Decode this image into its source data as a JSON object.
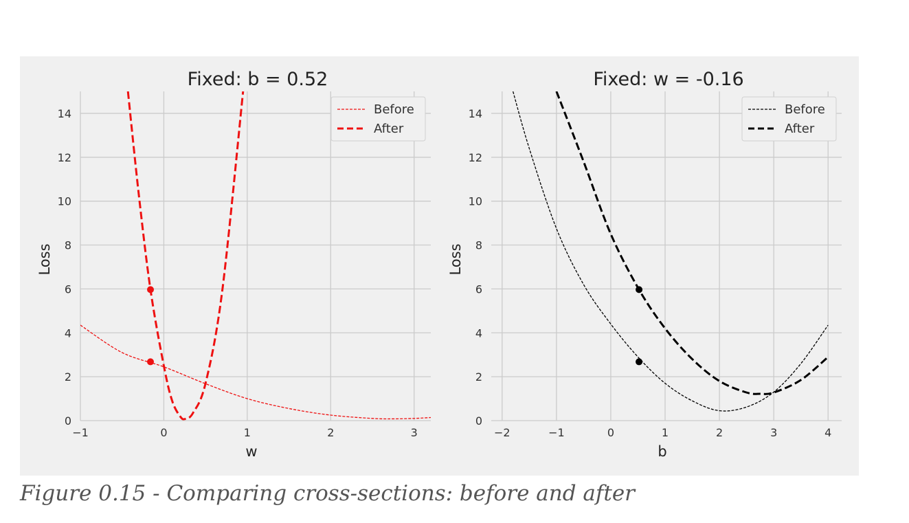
{
  "caption": "Figure 0.15 - Comparing cross-sections: before and after",
  "chart_data": [
    {
      "type": "line",
      "title": "Fixed: b = 0.52",
      "xlabel": "w",
      "ylabel": "Loss",
      "xlim": [
        -1,
        3.2
      ],
      "ylim": [
        0,
        15
      ],
      "xticks": [
        -1,
        0,
        1,
        2,
        3
      ],
      "yticks": [
        0,
        2,
        4,
        6,
        8,
        10,
        12,
        14
      ],
      "grid": true,
      "legend": "top-right",
      "color": "#ee1111",
      "series": [
        {
          "name": "Before",
          "style": "thin-dashed",
          "x": [
            -1,
            -0.5,
            0,
            0.5,
            1,
            1.5,
            2,
            2.5,
            2.75,
            3,
            3.2
          ],
          "y": [
            4.35,
            3.1,
            2.45,
            1.68,
            1.0,
            0.55,
            0.25,
            0.1,
            0.08,
            0.1,
            0.14
          ]
        },
        {
          "name": "After",
          "style": "thick-dashed",
          "x": [
            -0.43,
            -0.3,
            -0.16,
            0,
            0.1,
            0.2,
            0.26,
            0.35,
            0.5,
            0.7,
            0.95
          ],
          "y": [
            15,
            10.3,
            5.97,
            2.5,
            0.9,
            0.17,
            0.08,
            0.35,
            1.7,
            5.9,
            15
          ]
        }
      ],
      "points": [
        {
          "x": -0.16,
          "y": 5.97
        },
        {
          "x": -0.16,
          "y": 2.68
        }
      ]
    },
    {
      "type": "line",
      "title": "Fixed: w = -0.16",
      "xlabel": "b",
      "ylabel": "Loss",
      "xlim": [
        -2.2,
        4.25
      ],
      "ylim": [
        0,
        15
      ],
      "xticks": [
        -2,
        -1,
        0,
        1,
        2,
        3,
        4
      ],
      "yticks": [
        0,
        2,
        4,
        6,
        8,
        10,
        12,
        14
      ],
      "grid": true,
      "legend": "top-right",
      "color": "#000000",
      "series": [
        {
          "name": "Before",
          "style": "thin-dashed",
          "x": [
            -1.8,
            -1.5,
            -1,
            -0.5,
            0,
            0.5,
            1,
            1.5,
            2,
            2.5,
            3,
            3.5,
            4
          ],
          "y": [
            15,
            12.4,
            8.75,
            6.2,
            4.4,
            2.9,
            1.7,
            0.9,
            0.45,
            0.62,
            1.3,
            2.6,
            4.35
          ]
        },
        {
          "name": "After",
          "style": "thick-dashed",
          "x": [
            -1,
            -0.5,
            0,
            0.52,
            1,
            1.5,
            2,
            2.5,
            2.75,
            3,
            3.5,
            4
          ],
          "y": [
            15,
            11.8,
            8.5,
            5.97,
            4.2,
            2.8,
            1.8,
            1.28,
            1.22,
            1.28,
            1.85,
            2.9
          ]
        }
      ],
      "points": [
        {
          "x": 0.52,
          "y": 5.97
        },
        {
          "x": 0.52,
          "y": 2.68
        }
      ]
    }
  ]
}
